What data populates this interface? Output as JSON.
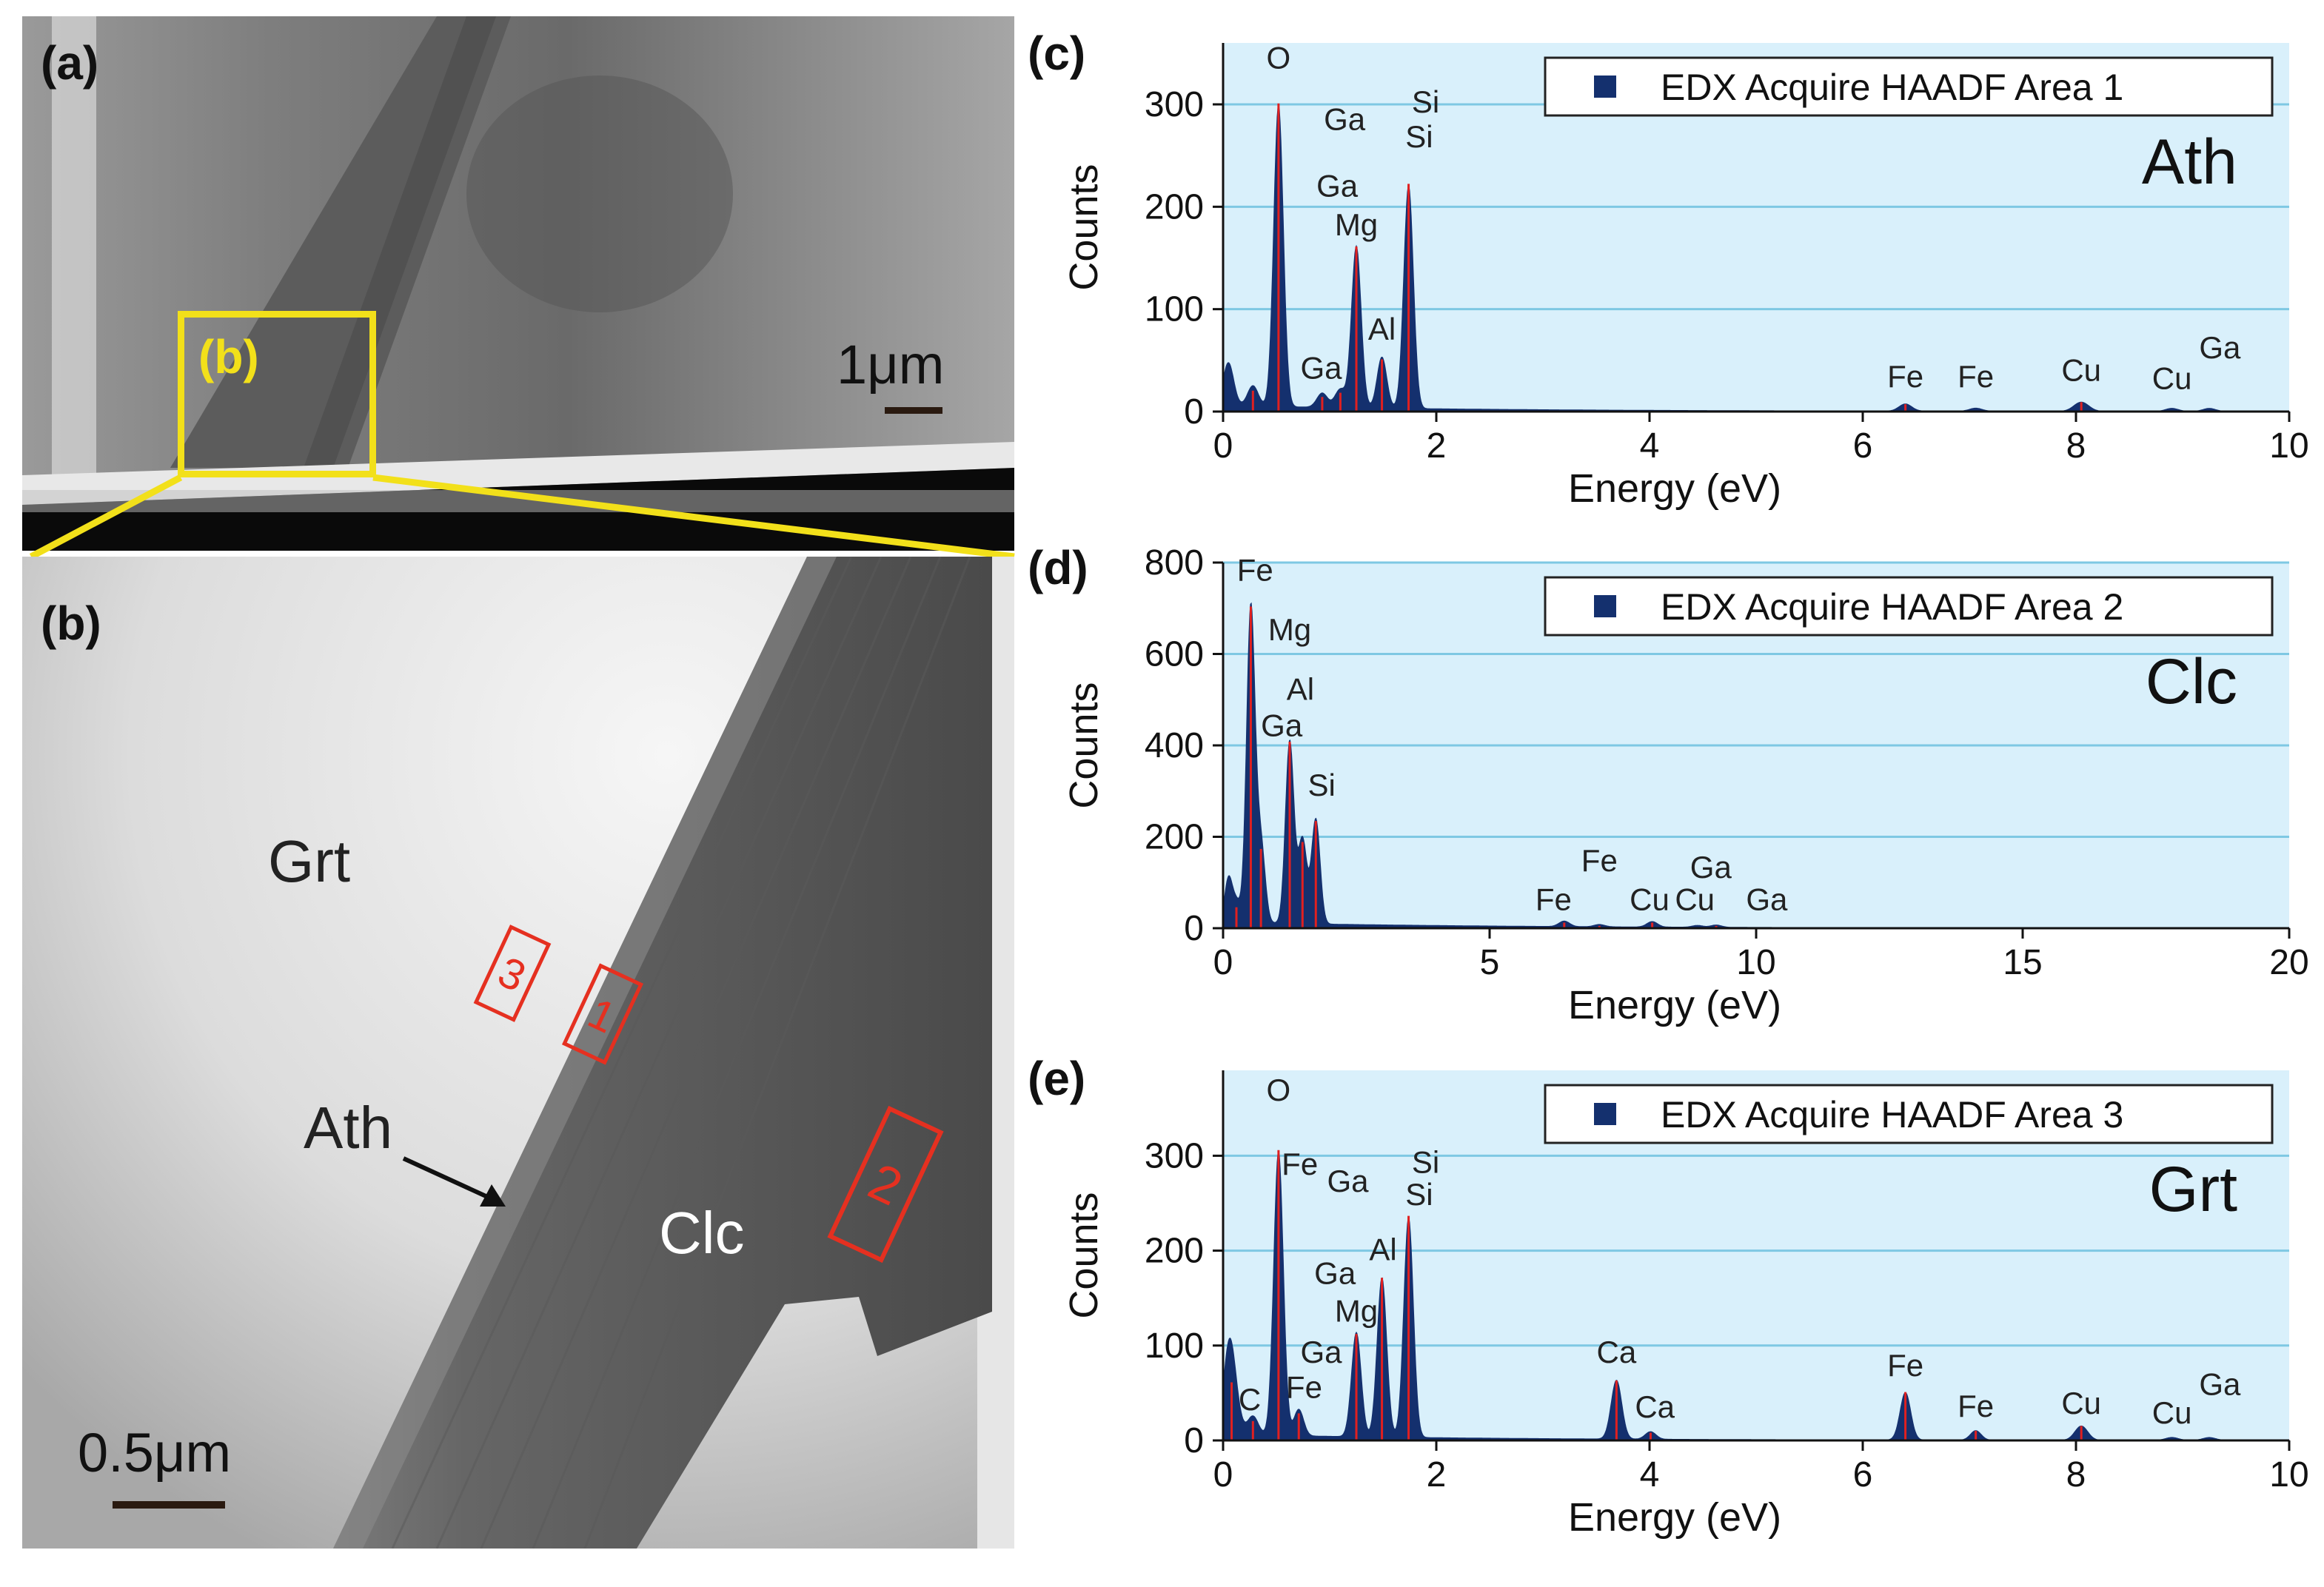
{
  "panels": {
    "a": {
      "label": "(a)",
      "inset_label": "(b)",
      "scale_bar": "1μm"
    },
    "b": {
      "label": "(b)",
      "scale_bar": "0.5μm",
      "phases": {
        "grt": "Grt",
        "ath": "Ath",
        "clc": "Clc"
      },
      "areas": [
        "1",
        "2",
        "3"
      ]
    },
    "c_label": "(c)",
    "d_label": "(d)",
    "e_label": "(e)"
  },
  "colors": {
    "plot_bg": "#d9f0fb",
    "grid": "#7ec8e3",
    "spectrum_fill": "#14306e",
    "peak_line": "#e02020",
    "inset_box": "#f2e01a",
    "area_box": "#e53020"
  },
  "chart_data": [
    {
      "id": "c",
      "type": "area",
      "legend": "EDX Acquire HAADF Area 1",
      "mineral": "Ath",
      "xlabel": "Energy (eV)",
      "ylabel": "Counts",
      "xlim": [
        0,
        10
      ],
      "ylim": [
        0,
        360
      ],
      "xticks": [
        0,
        2,
        4,
        6,
        8,
        10
      ],
      "yticks": [
        0,
        100,
        200,
        300
      ],
      "peaks": [
        {
          "x": 0.28,
          "y": 20,
          "w": 0.05
        },
        {
          "x": 0.52,
          "y": 295,
          "w": 0.045
        },
        {
          "x": 0.93,
          "y": 14,
          "w": 0.05
        },
        {
          "x": 1.1,
          "y": 18,
          "w": 0.05
        },
        {
          "x": 1.25,
          "y": 158,
          "w": 0.045
        },
        {
          "x": 1.49,
          "y": 50,
          "w": 0.045
        },
        {
          "x": 1.74,
          "y": 218,
          "w": 0.045
        },
        {
          "x": 6.4,
          "y": 7,
          "w": 0.06
        },
        {
          "x": 7.06,
          "y": 3,
          "w": 0.06
        },
        {
          "x": 8.05,
          "y": 9,
          "w": 0.07
        },
        {
          "x": 8.9,
          "y": 3,
          "w": 0.06
        },
        {
          "x": 9.25,
          "y": 3,
          "w": 0.06
        }
      ],
      "annotations": [
        {
          "text": "O",
          "x": 0.52,
          "y": 335
        },
        {
          "text": "Ga",
          "x": 1.14,
          "y": 275
        },
        {
          "text": "Si",
          "x": 1.9,
          "y": 292
        },
        {
          "text": "Si",
          "x": 1.84,
          "y": 258
        },
        {
          "text": "Ga",
          "x": 1.07,
          "y": 210
        },
        {
          "text": "Mg",
          "x": 1.25,
          "y": 172
        },
        {
          "text": "Al",
          "x": 1.49,
          "y": 70
        },
        {
          "text": "Ga",
          "x": 0.92,
          "y": 32
        },
        {
          "text": "Fe",
          "x": 6.4,
          "y": 24
        },
        {
          "text": "Fe",
          "x": 7.06,
          "y": 24
        },
        {
          "text": "Cu",
          "x": 8.05,
          "y": 30
        },
        {
          "text": "Cu",
          "x": 8.9,
          "y": 22
        },
        {
          "text": "Ga",
          "x": 9.35,
          "y": 52
        }
      ]
    },
    {
      "id": "d",
      "type": "area",
      "legend": "EDX Acquire HAADF Area 2",
      "mineral": "Clc",
      "xlabel": "Energy (eV)",
      "ylabel": "Counts",
      "xlim": [
        0,
        20
      ],
      "ylim": [
        0,
        800
      ],
      "xticks": [
        0,
        5,
        10,
        15,
        20
      ],
      "yticks": [
        0,
        200,
        400,
        600,
        800
      ],
      "peaks": [
        {
          "x": 0.25,
          "y": 45,
          "w": 0.08
        },
        {
          "x": 0.52,
          "y": 690,
          "w": 0.08
        },
        {
          "x": 0.71,
          "y": 170,
          "w": 0.08
        },
        {
          "x": 1.25,
          "y": 400,
          "w": 0.08
        },
        {
          "x": 1.49,
          "y": 185,
          "w": 0.08
        },
        {
          "x": 1.74,
          "y": 230,
          "w": 0.08
        },
        {
          "x": 6.4,
          "y": 12,
          "w": 0.1
        },
        {
          "x": 7.06,
          "y": 5,
          "w": 0.1
        },
        {
          "x": 8.05,
          "y": 12,
          "w": 0.1
        },
        {
          "x": 8.9,
          "y": 4,
          "w": 0.1
        },
        {
          "x": 9.25,
          "y": 5,
          "w": 0.1
        }
      ],
      "annotations": [
        {
          "text": "Fe",
          "x": 0.6,
          "y": 760
        },
        {
          "text": "Mg",
          "x": 1.25,
          "y": 630
        },
        {
          "text": "Al",
          "x": 1.45,
          "y": 500
        },
        {
          "text": "Ga",
          "x": 1.1,
          "y": 420
        },
        {
          "text": "Si",
          "x": 1.85,
          "y": 290
        },
        {
          "text": "Fe",
          "x": 7.06,
          "y": 125
        },
        {
          "text": "Fe",
          "x": 6.2,
          "y": 40
        },
        {
          "text": "Cu",
          "x": 8.0,
          "y": 40
        },
        {
          "text": "Cu",
          "x": 8.85,
          "y": 40
        },
        {
          "text": "Ga",
          "x": 9.15,
          "y": 110
        },
        {
          "text": "Ga",
          "x": 10.2,
          "y": 40
        }
      ]
    },
    {
      "id": "e",
      "type": "area",
      "legend": "EDX Acquire HAADF Area 3",
      "mineral": "Grt",
      "xlabel": "Energy (eV)",
      "ylabel": "Counts",
      "xlim": [
        0,
        10
      ],
      "ylim": [
        0,
        390
      ],
      "xticks": [
        0,
        2,
        4,
        6,
        8,
        10
      ],
      "yticks": [
        0,
        100,
        200,
        300
      ],
      "peaks": [
        {
          "x": 0.08,
          "y": 60,
          "w": 0.06
        },
        {
          "x": 0.28,
          "y": 20,
          "w": 0.05
        },
        {
          "x": 0.52,
          "y": 300,
          "w": 0.045
        },
        {
          "x": 0.71,
          "y": 28,
          "w": 0.045
        },
        {
          "x": 1.25,
          "y": 110,
          "w": 0.045
        },
        {
          "x": 1.49,
          "y": 168,
          "w": 0.045
        },
        {
          "x": 1.74,
          "y": 232,
          "w": 0.045
        },
        {
          "x": 3.69,
          "y": 62,
          "w": 0.05
        },
        {
          "x": 4.01,
          "y": 8,
          "w": 0.05
        },
        {
          "x": 6.4,
          "y": 50,
          "w": 0.05
        },
        {
          "x": 7.06,
          "y": 10,
          "w": 0.05
        },
        {
          "x": 8.05,
          "y": 15,
          "w": 0.06
        },
        {
          "x": 8.9,
          "y": 3,
          "w": 0.06
        },
        {
          "x": 9.25,
          "y": 3,
          "w": 0.06
        }
      ],
      "annotations": [
        {
          "text": "O",
          "x": 0.52,
          "y": 358
        },
        {
          "text": "Fe",
          "x": 0.72,
          "y": 280
        },
        {
          "text": "Ga",
          "x": 1.17,
          "y": 262
        },
        {
          "text": "Si",
          "x": 1.9,
          "y": 282
        },
        {
          "text": "Si",
          "x": 1.84,
          "y": 248
        },
        {
          "text": "Al",
          "x": 1.5,
          "y": 190
        },
        {
          "text": "Ga",
          "x": 1.05,
          "y": 165
        },
        {
          "text": "Mg",
          "x": 1.25,
          "y": 125
        },
        {
          "text": "Ga",
          "x": 0.92,
          "y": 82
        },
        {
          "text": "C",
          "x": 0.25,
          "y": 32
        },
        {
          "text": "Fe",
          "x": 0.76,
          "y": 45
        },
        {
          "text": "Ca",
          "x": 3.69,
          "y": 82
        },
        {
          "text": "Ca",
          "x": 4.05,
          "y": 24
        },
        {
          "text": "Fe",
          "x": 6.4,
          "y": 68
        },
        {
          "text": "Fe",
          "x": 7.06,
          "y": 25
        },
        {
          "text": "Cu",
          "x": 8.05,
          "y": 28
        },
        {
          "text": "Cu",
          "x": 8.9,
          "y": 18
        },
        {
          "text": "Ga",
          "x": 9.35,
          "y": 48
        }
      ]
    }
  ]
}
